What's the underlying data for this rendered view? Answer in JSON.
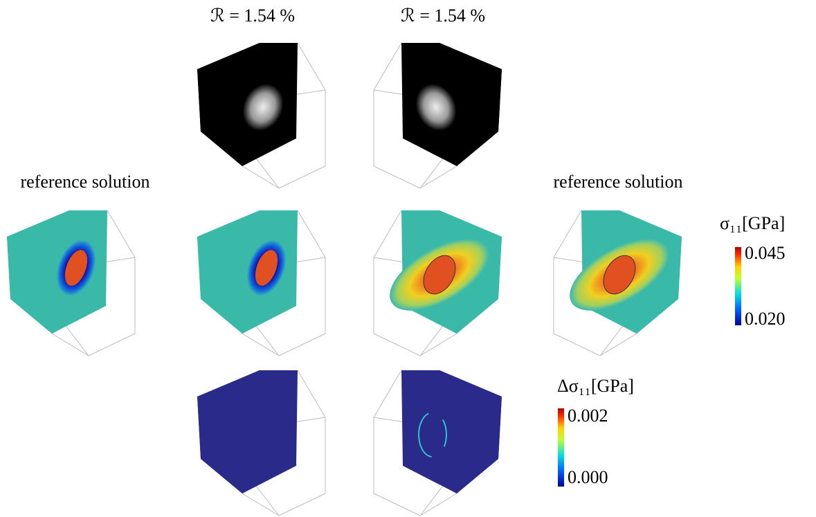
{
  "columns": [
    {
      "label": "ℛ = 1.54 %"
    },
    {
      "label": "ℛ = 1.54 %"
    }
  ],
  "reference_labels": [
    "reference solution",
    "reference solution"
  ],
  "colorbars": [
    {
      "title": "σ₁₁[GPa]",
      "max": "0.045",
      "min": "0.020"
    },
    {
      "title": "Δσ₁₁[GPa]",
      "max": "0.002",
      "min": "0.000"
    }
  ]
}
